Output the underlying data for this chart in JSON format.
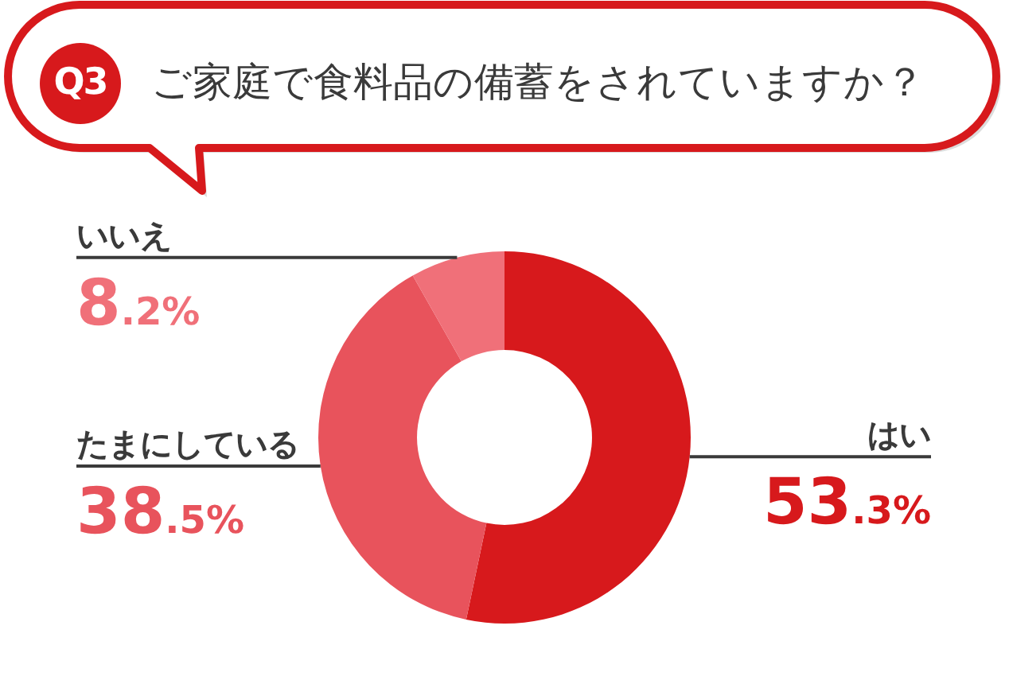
{
  "chart_data": {
    "type": "donut",
    "title": "ご家庭で食料品の備蓄をされていますか？",
    "annotations": [
      "Q3"
    ],
    "categories": [
      "はい",
      "たまにしている",
      "いいえ"
    ],
    "values": [
      53.3,
      38.5,
      8.2
    ],
    "colors": [
      "#d7191c",
      "#e8535c",
      "#f07079"
    ],
    "value_labels": [
      "53.3%",
      "38.5%",
      "8.2%"
    ]
  }
}
